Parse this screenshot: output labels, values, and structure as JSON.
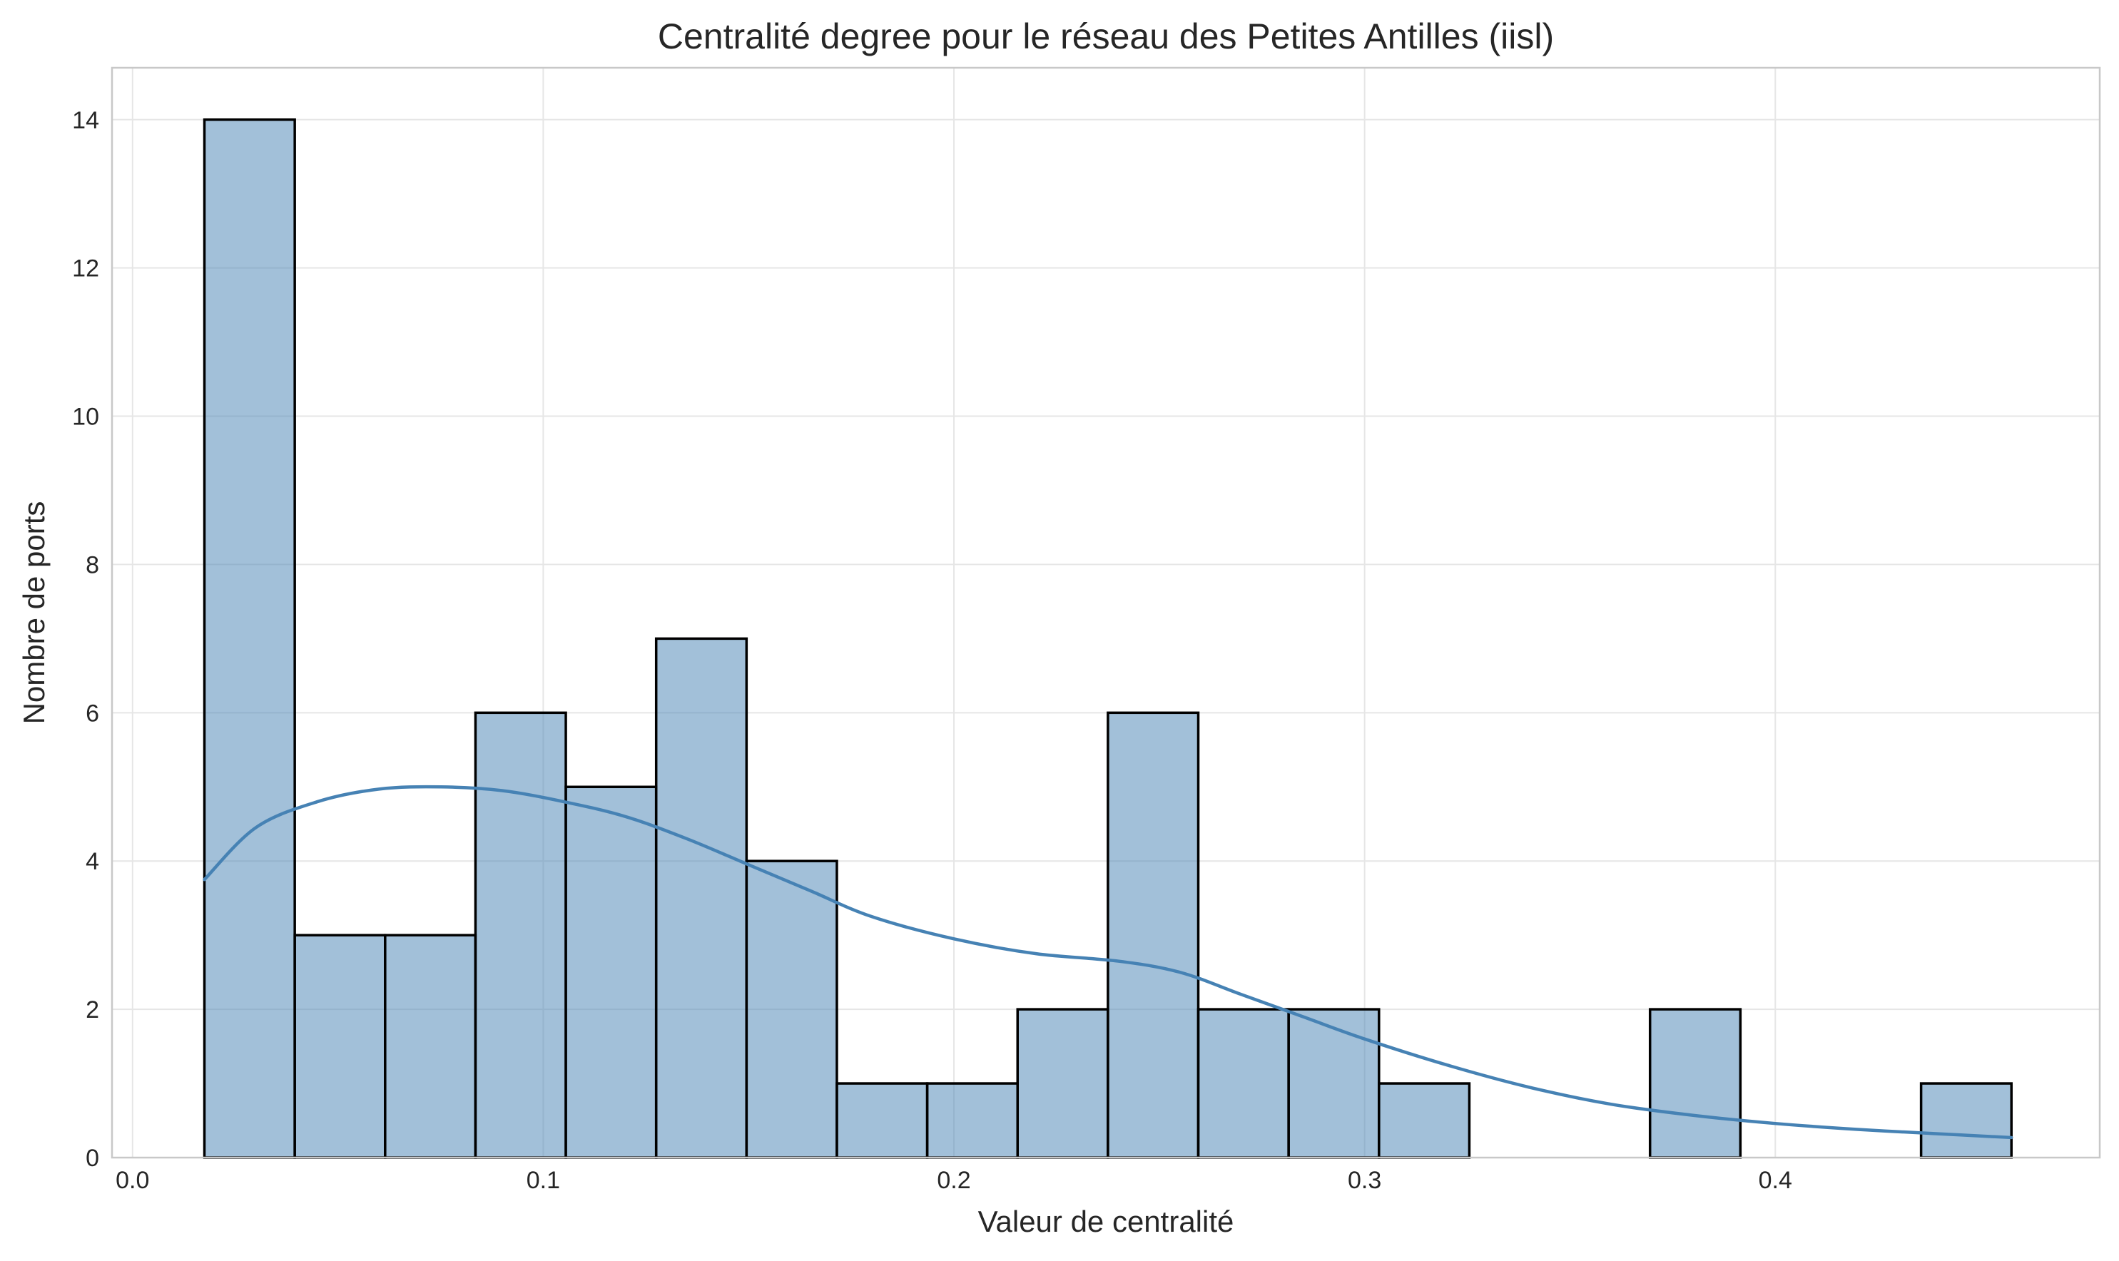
{
  "chart_data": {
    "type": "bar",
    "title": "Centralité degree pour le réseau des Petites Antilles (iisl)",
    "xlabel": "Valeur de centralité",
    "ylabel": "Nombre de ports",
    "xlim": [
      -0.005,
      0.479
    ],
    "ylim": [
      0,
      14.7
    ],
    "xticks": [
      0.0,
      0.1,
      0.2,
      0.3,
      0.4
    ],
    "xtick_labels": [
      "0.0",
      "0.1",
      "0.2",
      "0.3",
      "0.4"
    ],
    "yticks": [
      0,
      2,
      4,
      6,
      8,
      10,
      12,
      14
    ],
    "ytick_labels": [
      "0",
      "2",
      "4",
      "6",
      "8",
      "10",
      "12",
      "14"
    ],
    "grid": true,
    "bin_edges": [
      0.0175,
      0.0395,
      0.0615,
      0.0835,
      0.1055,
      0.1275,
      0.1495,
      0.1715,
      0.1935,
      0.2155,
      0.2375,
      0.2595,
      0.2815,
      0.3035,
      0.3255,
      0.3475,
      0.3695,
      0.3915,
      0.4135,
      0.4355,
      0.4575
    ],
    "counts": [
      14,
      3,
      3,
      6,
      5,
      7,
      4,
      1,
      1,
      2,
      6,
      2,
      2,
      1,
      0,
      0,
      2,
      0,
      0,
      1
    ],
    "kde": {
      "x": [
        0.0175,
        0.03,
        0.045,
        0.06,
        0.075,
        0.09,
        0.105,
        0.12,
        0.135,
        0.15,
        0.165,
        0.18,
        0.2,
        0.22,
        0.24,
        0.255,
        0.27,
        0.285,
        0.3,
        0.32,
        0.34,
        0.36,
        0.38,
        0.4,
        0.42,
        0.44,
        0.4575
      ],
      "y": [
        3.75,
        4.45,
        4.8,
        4.97,
        5.0,
        4.95,
        4.8,
        4.6,
        4.3,
        3.95,
        3.6,
        3.25,
        2.95,
        2.75,
        2.65,
        2.5,
        2.2,
        1.9,
        1.6,
        1.25,
        0.95,
        0.72,
        0.57,
        0.46,
        0.38,
        0.32,
        0.27
      ]
    },
    "colors": {
      "bar_fill": "#4682b4",
      "bar_fill_opacity": 0.5,
      "bar_edge": "#000000",
      "kde_line": "#4682b4"
    }
  }
}
